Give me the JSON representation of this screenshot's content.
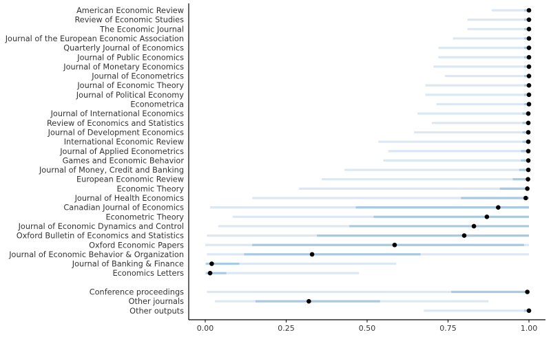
{
  "chart_data": {
    "type": "dot-interval",
    "xlim": [
      0,
      1
    ],
    "xticks": [
      "0.00",
      "0.25",
      "0.50",
      "0.75",
      "1.00"
    ],
    "grid": false,
    "colors": {
      "light_band": "#dbe8f4",
      "dark_band": "#a8c9e2",
      "point": "#000000",
      "axis": "#000000",
      "text": "#333333"
    },
    "rows": [
      {
        "label": "American Economic Review",
        "point": 1.0,
        "inner": [
          0.985,
          1.0
        ],
        "outer": [
          0.885,
          1.0
        ]
      },
      {
        "label": "Review of Economic Studies",
        "point": 1.0,
        "inner": [
          0.985,
          1.0
        ],
        "outer": [
          0.81,
          1.0
        ]
      },
      {
        "label": "The Economic Journal",
        "point": 1.0,
        "inner": [
          0.985,
          1.0
        ],
        "outer": [
          0.81,
          1.0
        ]
      },
      {
        "label": "Journal of the European Economic Association",
        "point": 1.0,
        "inner": [
          0.985,
          1.0
        ],
        "outer": [
          0.765,
          1.0
        ]
      },
      {
        "label": "Quarterly Journal of Economics",
        "point": 1.0,
        "inner": [
          0.985,
          1.0
        ],
        "outer": [
          0.72,
          1.0
        ]
      },
      {
        "label": "Journal of Public Economics",
        "point": 1.0,
        "inner": [
          0.985,
          1.0
        ],
        "outer": [
          0.72,
          1.0
        ]
      },
      {
        "label": "Journal of Monetary Economics",
        "point": 1.0,
        "inner": [
          0.985,
          1.0
        ],
        "outer": [
          0.705,
          1.0
        ]
      },
      {
        "label": "Journal of Econometrics",
        "point": 1.0,
        "inner": [
          0.985,
          1.0
        ],
        "outer": [
          0.74,
          1.0
        ]
      },
      {
        "label": "Journal of Economic Theory",
        "point": 1.0,
        "inner": [
          0.985,
          1.0
        ],
        "outer": [
          0.68,
          1.0
        ]
      },
      {
        "label": "Journal of Political Economy",
        "point": 1.0,
        "inner": [
          0.985,
          1.0
        ],
        "outer": [
          0.68,
          1.0
        ]
      },
      {
        "label": "Econometrica",
        "point": 1.0,
        "inner": [
          0.985,
          1.0
        ],
        "outer": [
          0.715,
          1.0
        ]
      },
      {
        "label": "Journal of International Economics",
        "point": 0.998,
        "inner": [
          0.98,
          1.0
        ],
        "outer": [
          0.655,
          1.0
        ]
      },
      {
        "label": "Review of Economics and Statistics",
        "point": 0.998,
        "inner": [
          0.98,
          1.0
        ],
        "outer": [
          0.7,
          1.0
        ]
      },
      {
        "label": "Journal of Development Economics",
        "point": 0.998,
        "inner": [
          0.98,
          1.0
        ],
        "outer": [
          0.645,
          1.0
        ]
      },
      {
        "label": "International Economic Review",
        "point": 0.998,
        "inner": [
          0.98,
          1.0
        ],
        "outer": [
          0.535,
          1.0
        ]
      },
      {
        "label": "Journal of Applied Econometrics",
        "point": 0.998,
        "inner": [
          0.975,
          1.0
        ],
        "outer": [
          0.565,
          1.0
        ]
      },
      {
        "label": "Games and Economic Behavior",
        "point": 0.998,
        "inner": [
          0.975,
          1.0
        ],
        "outer": [
          0.55,
          1.0
        ]
      },
      {
        "label": "Journal of Money, Credit and Banking",
        "point": 0.998,
        "inner": [
          0.97,
          1.0
        ],
        "outer": [
          0.43,
          1.0
        ]
      },
      {
        "label": "European Economic Review",
        "point": 0.997,
        "inner": [
          0.95,
          1.0
        ],
        "outer": [
          0.36,
          1.0
        ]
      },
      {
        "label": "Economic Theory",
        "point": 0.995,
        "inner": [
          0.91,
          1.0
        ],
        "outer": [
          0.29,
          1.0
        ]
      },
      {
        "label": "Journal of Health Economics",
        "point": 0.99,
        "inner": [
          0.79,
          1.0
        ],
        "outer": [
          0.145,
          1.0
        ]
      },
      {
        "label": "Canadian Journal of Economics",
        "point": 0.905,
        "inner": [
          0.465,
          1.0
        ],
        "outer": [
          0.015,
          1.0
        ]
      },
      {
        "label": "Econometric Theory",
        "point": 0.87,
        "inner": [
          0.52,
          1.0
        ],
        "outer": [
          0.085,
          1.0
        ]
      },
      {
        "label": "Journal of Economic Dynamics and Control",
        "point": 0.83,
        "inner": [
          0.445,
          1.0
        ],
        "outer": [
          0.04,
          1.0
        ]
      },
      {
        "label": "Oxford Bulletin of Economics and Statistics",
        "point": 0.8,
        "inner": [
          0.345,
          1.0
        ],
        "outer": [
          0.005,
          1.0
        ]
      },
      {
        "label": "Oxford Economic Papers",
        "point": 0.585,
        "inner": [
          0.145,
          0.985
        ],
        "outer": [
          0.0,
          1.0
        ]
      },
      {
        "label": "Journal of Economic Behavior & Organization",
        "point": 0.33,
        "inner": [
          0.12,
          0.665
        ],
        "outer": [
          0.005,
          1.0
        ]
      },
      {
        "label": "Journal of Banking & Finance",
        "point": 0.02,
        "inner": [
          0.003,
          0.105
        ],
        "outer": [
          0.0,
          0.59
        ]
      },
      {
        "label": "Economics Letters",
        "point": 0.015,
        "inner": [
          0.003,
          0.065
        ],
        "outer": [
          0.0,
          0.475
        ]
      },
      {
        "label": "",
        "gap": true
      },
      {
        "label": "Conference proceedings",
        "point": 0.995,
        "inner": [
          0.76,
          1.0
        ],
        "outer": [
          0.005,
          1.0
        ]
      },
      {
        "label": "Other journals",
        "point": 0.32,
        "inner": [
          0.155,
          0.54
        ],
        "outer": [
          0.03,
          0.875
        ]
      },
      {
        "label": "Other outputs",
        "point": 1.0,
        "inner": [
          0.985,
          1.0
        ],
        "outer": [
          0.675,
          1.0
        ]
      }
    ]
  }
}
